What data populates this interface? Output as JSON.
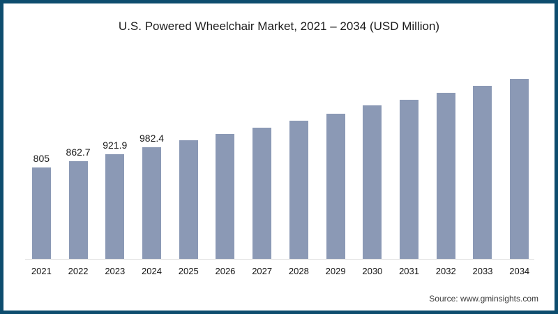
{
  "title": "U.S. Powered Wheelchair Market, 2021 – 2034 (USD Million)",
  "source": "Source: www.gminsights.com",
  "colors": {
    "frame_border": "#0d4d6e",
    "bar_fill": "#8b99b5",
    "axis_line": "#dedede"
  },
  "chart_data": {
    "type": "bar",
    "title": "U.S. Powered Wheelchair Market, 2021 – 2034 (USD Million)",
    "categories": [
      "2021",
      "2022",
      "2023",
      "2024",
      "2025",
      "2026",
      "2027",
      "2028",
      "2029",
      "2030",
      "2031",
      "2032",
      "2033",
      "2034"
    ],
    "values": [
      805,
      862.7,
      921.9,
      982.4,
      1044.6,
      1100.2,
      1155.3,
      1216.6,
      1278.1,
      1351.9,
      1401.3,
      1462.5,
      1524.0,
      1585.0
    ],
    "value_labels": [
      "805",
      "862.7",
      "921.9",
      "982.4",
      "",
      "",
      "",
      "",
      "",
      "",
      "",
      "",
      "",
      ""
    ],
    "xlabel": "",
    "ylabel": "",
    "ylim": [
      0,
      1800
    ],
    "grid": false,
    "legend": null,
    "units": "USD Million"
  }
}
